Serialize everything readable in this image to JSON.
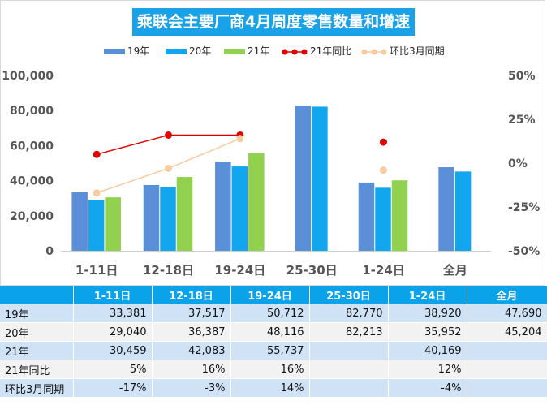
{
  "chart_data": {
    "type": "bar",
    "title": "乘联会主要厂商4月周度零售数量和增速",
    "categories": [
      "1-11日",
      "12-18日",
      "19-24日",
      "25-30日",
      "1-24日",
      "全月"
    ],
    "y_left": {
      "ticks": [
        "0",
        "20,000",
        "40,000",
        "60,000",
        "80,000",
        "100,000"
      ],
      "range": [
        0,
        100000
      ]
    },
    "y_right": {
      "ticks": [
        "-50%",
        "-25%",
        "0%",
        "25%",
        "50%"
      ],
      "range": [
        -50,
        50
      ]
    },
    "series": [
      {
        "name": "19年",
        "type": "bar",
        "color": "#5b8fd8",
        "values": [
          33381,
          37517,
          50712,
          82770,
          38920,
          47690
        ]
      },
      {
        "name": "20年",
        "type": "bar",
        "color": "#12a6ee",
        "values": [
          29040,
          36387,
          48116,
          82213,
          35952,
          45204
        ]
      },
      {
        "name": "21年",
        "type": "bar",
        "color": "#92d050",
        "values": [
          30459,
          42083,
          55737,
          null,
          40169,
          null
        ]
      },
      {
        "name": "21年同比",
        "type": "line",
        "axis": "right",
        "color": "#e00000",
        "values": [
          5,
          16,
          16,
          null,
          12,
          null
        ]
      },
      {
        "name": "环比3月同期",
        "type": "line",
        "axis": "right",
        "color": "#f8cba0",
        "values": [
          -17,
          -3,
          14,
          null,
          -4,
          null
        ]
      }
    ],
    "legend_position": "top"
  },
  "table": {
    "header": [
      "",
      "1-11日",
      "12-18日",
      "19-24日",
      "25-30日",
      "1-24日",
      "全月"
    ],
    "rows": [
      {
        "label": "19年",
        "cells": [
          "33,381",
          "37,517",
          "50,712",
          "82,770",
          "38,920",
          "47,690"
        ]
      },
      {
        "label": "20年",
        "cells": [
          "29,040",
          "36,387",
          "48,116",
          "82,213",
          "35,952",
          "45,204"
        ]
      },
      {
        "label": "21年",
        "cells": [
          "30,459",
          "42,083",
          "55,737",
          "",
          "40,169",
          ""
        ]
      },
      {
        "label": "21年同比",
        "cells": [
          "5%",
          "16%",
          "16%",
          "",
          "12%",
          ""
        ]
      },
      {
        "label": "环比3月同期",
        "cells": [
          "-17%",
          "-3%",
          "14%",
          "",
          "-4%",
          ""
        ]
      }
    ]
  }
}
